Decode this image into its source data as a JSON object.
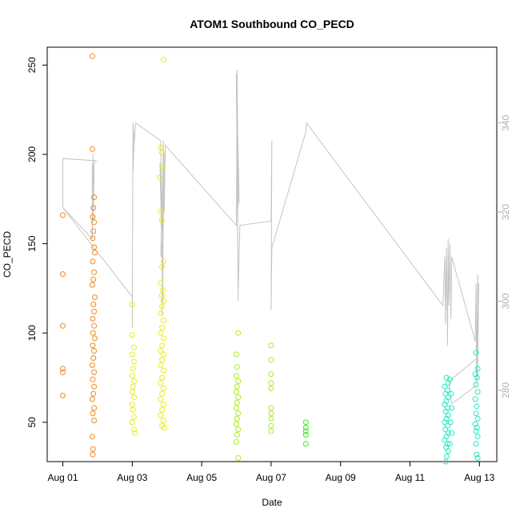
{
  "chart_data": {
    "type": "scatter",
    "title": "ATOM1 Southbound CO_PECD",
    "xlabel": "Date",
    "ylabel": "CO_PECD",
    "x_ticks": [
      {
        "label": "Aug 01",
        "day": 1
      },
      {
        "label": "Aug 03",
        "day": 3
      },
      {
        "label": "Aug 05",
        "day": 5
      },
      {
        "label": "Aug 07",
        "day": 7
      },
      {
        "label": "Aug 09",
        "day": 9
      },
      {
        "label": "Aug 11",
        "day": 11
      },
      {
        "label": "Aug 13",
        "day": 13
      }
    ],
    "xlim": [
      0.55,
      13.5
    ],
    "ylim": [
      28,
      260
    ],
    "y_ticks": [
      50,
      100,
      150,
      200,
      250
    ],
    "y2lim": [
      264,
      357
    ],
    "y2_ticks": [
      280,
      300,
      320,
      340
    ],
    "grid": false,
    "series": [
      {
        "color": "#ee8a1e",
        "points": [
          [
            1.0,
            166
          ],
          [
            1.0,
            133
          ],
          [
            1.0,
            104
          ],
          [
            1.0,
            80
          ],
          [
            1.0,
            78
          ],
          [
            1.0,
            65
          ],
          [
            1.85,
            255
          ],
          [
            1.85,
            203
          ],
          [
            1.9,
            176
          ],
          [
            1.88,
            170
          ],
          [
            1.86,
            165
          ],
          [
            1.9,
            162
          ],
          [
            1.88,
            157
          ],
          [
            1.86,
            153
          ],
          [
            1.9,
            148
          ],
          [
            1.92,
            145
          ],
          [
            1.86,
            140
          ],
          [
            1.9,
            134
          ],
          [
            1.88,
            130
          ],
          [
            1.85,
            127
          ],
          [
            1.92,
            120
          ],
          [
            1.88,
            116
          ],
          [
            1.9,
            112
          ],
          [
            1.86,
            108
          ],
          [
            1.9,
            104
          ],
          [
            1.87,
            100
          ],
          [
            1.92,
            97
          ],
          [
            1.86,
            93
          ],
          [
            1.9,
            90
          ],
          [
            1.88,
            86
          ],
          [
            1.85,
            82
          ],
          [
            1.9,
            78
          ],
          [
            1.86,
            74
          ],
          [
            1.9,
            70
          ],
          [
            1.88,
            66
          ],
          [
            1.85,
            63
          ],
          [
            1.9,
            58
          ],
          [
            1.86,
            55
          ],
          [
            1.9,
            51
          ],
          [
            1.85,
            42
          ],
          [
            1.87,
            35
          ],
          [
            1.86,
            32
          ]
        ]
      },
      {
        "color": "#e6ee1e",
        "points": [
          [
            3.0,
            116
          ],
          [
            3.0,
            99
          ],
          [
            3.05,
            92
          ],
          [
            3.0,
            88
          ],
          [
            3.05,
            84
          ],
          [
            3.02,
            80
          ],
          [
            3.0,
            76
          ],
          [
            3.05,
            73
          ],
          [
            3.02,
            70
          ],
          [
            3.0,
            67
          ],
          [
            3.05,
            64
          ],
          [
            3.0,
            60
          ],
          [
            3.02,
            57
          ],
          [
            3.05,
            53
          ],
          [
            3.0,
            50
          ],
          [
            3.05,
            46
          ],
          [
            3.08,
            44
          ],
          [
            3.9,
            253
          ],
          [
            3.82,
            204
          ],
          [
            3.85,
            201
          ],
          [
            3.8,
            187
          ],
          [
            3.88,
            193
          ],
          [
            3.82,
            168
          ],
          [
            3.85,
            163
          ],
          [
            3.9,
            140
          ],
          [
            3.86,
            137
          ],
          [
            3.82,
            128
          ],
          [
            3.88,
            124
          ],
          [
            3.85,
            121
          ],
          [
            3.9,
            118
          ],
          [
            3.86,
            115
          ],
          [
            3.82,
            111
          ],
          [
            3.9,
            107
          ],
          [
            3.86,
            103
          ],
          [
            3.82,
            100
          ],
          [
            3.9,
            97
          ],
          [
            3.86,
            93
          ],
          [
            3.82,
            90
          ],
          [
            3.9,
            88
          ],
          [
            3.86,
            85
          ],
          [
            3.82,
            82
          ],
          [
            3.9,
            79
          ],
          [
            3.86,
            75
          ],
          [
            3.82,
            72
          ],
          [
            3.9,
            69
          ],
          [
            3.86,
            66
          ],
          [
            3.82,
            63
          ],
          [
            3.9,
            60
          ],
          [
            3.86,
            57
          ],
          [
            3.82,
            54
          ],
          [
            3.9,
            51
          ],
          [
            3.86,
            48
          ],
          [
            3.92,
            47
          ]
        ]
      },
      {
        "color": "#a8ee1e",
        "points": [
          [
            6.05,
            100
          ],
          [
            6.0,
            88
          ],
          [
            6.02,
            81
          ],
          [
            6.0,
            76
          ],
          [
            6.05,
            73
          ],
          [
            6.02,
            70
          ],
          [
            6.0,
            67
          ],
          [
            6.05,
            64
          ],
          [
            6.02,
            61
          ],
          [
            6.0,
            58
          ],
          [
            6.05,
            55
          ],
          [
            6.02,
            52
          ],
          [
            6.0,
            49
          ],
          [
            6.05,
            46
          ],
          [
            6.02,
            43
          ],
          [
            6.0,
            39
          ],
          [
            6.05,
            30
          ],
          [
            7.0,
            93
          ],
          [
            7.0,
            85
          ],
          [
            7.0,
            77
          ],
          [
            7.0,
            72
          ],
          [
            7.0,
            69
          ],
          [
            7.0,
            58
          ],
          [
            7.0,
            55
          ],
          [
            7.0,
            52
          ],
          [
            7.0,
            48
          ],
          [
            7.0,
            45
          ]
        ]
      },
      {
        "color": "#38ee1e",
        "points": [
          [
            8.0,
            50
          ],
          [
            8.0,
            47
          ],
          [
            8.0,
            45
          ],
          [
            8.0,
            43
          ],
          [
            8.0,
            38
          ]
        ]
      },
      {
        "color": "#1eeebe",
        "points": [
          [
            12.05,
            75
          ],
          [
            12.1,
            72
          ],
          [
            12.0,
            70
          ],
          [
            12.08,
            68
          ],
          [
            12.02,
            66
          ],
          [
            12.1,
            64
          ],
          [
            12.05,
            62
          ],
          [
            12.0,
            60
          ],
          [
            12.08,
            58
          ],
          [
            12.03,
            56
          ],
          [
            12.1,
            54
          ],
          [
            12.05,
            52
          ],
          [
            12.0,
            50
          ],
          [
            12.08,
            48
          ],
          [
            12.02,
            46
          ],
          [
            12.1,
            44
          ],
          [
            12.05,
            42
          ],
          [
            12.0,
            40
          ],
          [
            12.08,
            38
          ],
          [
            12.04,
            36
          ],
          [
            12.1,
            34
          ],
          [
            12.06,
            31
          ],
          [
            12.03,
            28
          ],
          [
            12.15,
            74
          ],
          [
            12.18,
            66
          ],
          [
            12.2,
            58
          ],
          [
            12.17,
            50
          ],
          [
            12.2,
            44
          ],
          [
            12.15,
            38
          ],
          [
            12.9,
            89
          ],
          [
            12.95,
            80
          ],
          [
            12.88,
            77
          ],
          [
            12.93,
            75
          ],
          [
            12.9,
            71
          ],
          [
            12.95,
            67
          ],
          [
            12.88,
            63
          ],
          [
            12.92,
            59
          ],
          [
            12.9,
            55
          ],
          [
            12.95,
            52
          ],
          [
            12.88,
            49
          ],
          [
            12.93,
            47
          ],
          [
            12.9,
            45
          ],
          [
            12.95,
            42
          ],
          [
            12.9,
            38
          ],
          [
            12.92,
            32
          ],
          [
            12.95,
            30
          ]
        ]
      }
    ],
    "overlay_line": {
      "color": "#c4c4c4",
      "axis": "right",
      "points": [
        [
          1.0,
          332
        ],
        [
          1.0,
          321
        ],
        [
          1.85,
          314
        ],
        [
          1.85,
          331
        ],
        [
          1.86,
          325
        ],
        [
          1.87,
          333
        ],
        [
          1.88,
          318
        ],
        [
          1.9,
          330
        ],
        [
          1.92,
          331.5
        ],
        [
          1.98,
          331.5
        ],
        [
          1.0,
          332
        ],
        [
          1.0,
          321
        ],
        [
          3.0,
          301
        ],
        [
          3.0,
          294
        ],
        [
          3.02,
          340
        ],
        [
          3.05,
          337
        ],
        [
          3.02,
          329
        ],
        [
          3.05,
          335
        ],
        [
          3.1,
          340
        ],
        [
          3.82,
          336
        ],
        [
          3.85,
          320
        ],
        [
          3.8,
          331
        ],
        [
          3.88,
          300
        ],
        [
          3.9,
          334
        ],
        [
          3.82,
          310
        ],
        [
          3.92,
          333
        ],
        [
          3.86,
          297
        ],
        [
          3.9,
          336
        ],
        [
          3.85,
          315
        ],
        [
          3.9,
          329
        ],
        [
          3.92,
          320
        ],
        [
          3.95,
          335
        ],
        [
          6.0,
          317
        ],
        [
          6.02,
          352
        ],
        [
          6.05,
          321
        ],
        [
          6.0,
          351
        ],
        [
          6.05,
          300
        ],
        [
          6.02,
          345
        ],
        [
          6.08,
          322
        ],
        [
          6.0,
          348
        ],
        [
          6.05,
          302
        ],
        [
          6.1,
          317
        ],
        [
          7.0,
          318
        ],
        [
          7.02,
          336
        ],
        [
          7.0,
          298
        ],
        [
          7.02,
          312
        ],
        [
          8.0,
          338
        ],
        [
          8.02,
          340
        ],
        [
          11.95,
          299
        ],
        [
          12.0,
          310
        ],
        [
          12.02,
          295
        ],
        [
          12.05,
          312
        ],
        [
          12.08,
          290
        ],
        [
          12.1,
          314
        ],
        [
          12.12,
          299
        ],
        [
          12.15,
          313
        ],
        [
          12.18,
          296
        ],
        [
          12.2,
          310
        ],
        [
          12.88,
          291
        ],
        [
          12.9,
          304
        ],
        [
          12.92,
          283
        ],
        [
          12.95,
          306
        ],
        [
          12.97,
          297
        ],
        [
          12.94,
          282
        ],
        [
          12.98,
          304
        ],
        [
          12.95,
          292
        ],
        [
          12.9,
          281
        ],
        [
          12.2,
          277
        ],
        [
          12.12,
          282
        ],
        [
          12.9,
          287
        ]
      ]
    }
  }
}
